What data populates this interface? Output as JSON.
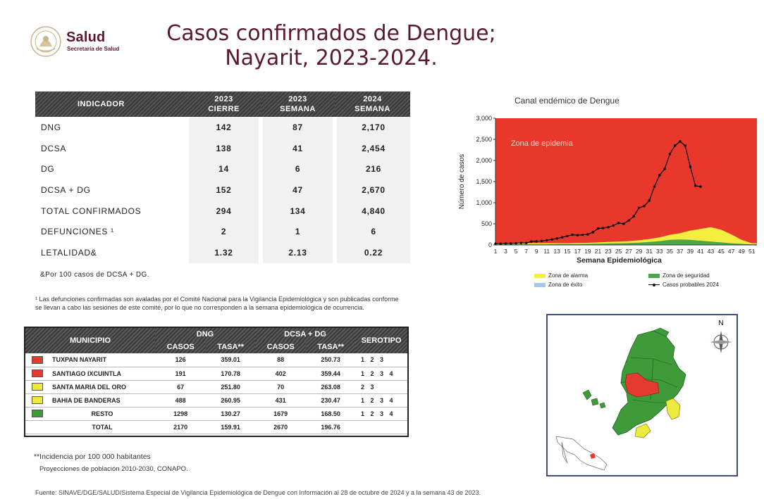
{
  "header": {
    "brand": "Salud",
    "subtitle": "Secretaría de Salud",
    "title_line1": "Casos confirmados de Dengue;",
    "title_line2": "Nayarit, 2023-2024."
  },
  "indicators": {
    "headers": {
      "indicador": "INDICADOR",
      "col1_a": "2023",
      "col1_b": "CIERRE",
      "col2_a": "2023",
      "col2_b": "SEMANA",
      "col3_a": "2024",
      "col3_b": "SEMANA"
    },
    "rows": [
      {
        "label": "DNG",
        "v1": "142",
        "v2": "87",
        "v3": "2,170"
      },
      {
        "label": "DCSA",
        "v1": "138",
        "v2": "41",
        "v3": "2,454"
      },
      {
        "label": "DG",
        "v1": "14",
        "v2": "6",
        "v3": "216"
      },
      {
        "label": "DCSA + DG",
        "v1": "152",
        "v2": "47",
        "v3": "2,670"
      },
      {
        "label": "TOTAL CONFIRMADOS",
        "v1": "294",
        "v2": "134",
        "v3": "4,840"
      },
      {
        "label": "DEFUNCIONES ¹",
        "v1": "2",
        "v2": "1",
        "v3": "6"
      },
      {
        "label": "LETALIDAD&",
        "v1": "1.32",
        "v2": "2.13",
        "v3": "0.22"
      }
    ],
    "note_por": "&Por 100 casos de DCSA + DG.",
    "note_defs": "¹ Las defunciones confirmadas son avaladas por el Comité Nacional para la Vigilancia Epidemiológica y son publicadas conforme se llevan a cabo las sesiones de este comité, por lo que no corresponden a la semana epidemiológica de ocurrencia."
  },
  "municipios": {
    "headers": {
      "municipio": "MUNICIPIO",
      "dng": "DNG",
      "dcsa": "DCSA + DG",
      "serotipo": "SEROTIPO",
      "casos": "CASOS",
      "tasa": "TASA**"
    },
    "rows": [
      {
        "color": "#e53a2f",
        "name": "TUXPAN NAYARIT",
        "casos1": "126",
        "tasa1": "359.01",
        "casos2": "88",
        "tasa2": "250.73",
        "sero": "1 2 3"
      },
      {
        "color": "#e53a2f",
        "name": "SANTIAGO IXCUINTLA",
        "casos1": "191",
        "tasa1": "170.78",
        "casos2": "402",
        "tasa2": "359.44",
        "sero": "1 2 3 4"
      },
      {
        "color": "#ecea3a",
        "name": "SANTA MARIA DEL ORO",
        "casos1": "67",
        "tasa1": "251.80",
        "casos2": "70",
        "tasa2": "263.08",
        "sero": "2 3"
      },
      {
        "color": "#ecea3a",
        "name": "BAHIA DE BANDERAS",
        "casos1": "488",
        "tasa1": "260.95",
        "casos2": "431",
        "tasa2": "230.47",
        "sero": "1 2 3 4"
      },
      {
        "color": "#3f9a3a",
        "name": "RESTO",
        "casos1": "1298",
        "tasa1": "130.27",
        "casos2": "1679",
        "tasa2": "168.50",
        "sero": "1 2 3 4"
      }
    ],
    "total": {
      "name": "TOTAL",
      "casos1": "2170",
      "tasa1": "159.91",
      "casos2": "2670",
      "tasa2": "196.76"
    }
  },
  "notes": {
    "incidencia": "**Incidencia por 100 000 habitantes",
    "proyecciones": "Proyecciones de población 2010-2030,  CONAPO.",
    "fuente": "Fuente: SINAVE/DGE/SALUD/Sistema Especial de Vigilancia Epidemiológica de Dengue con Información al 28 de octubre de 2024 y a la semana 43 de 2023."
  },
  "chart_data": {
    "type": "area",
    "title": "Canal endémico de Dengue",
    "xlabel": "Semana Epidemiológica",
    "ylabel": "Número de casos",
    "ylim": [
      0,
      3000
    ],
    "yticks": [
      "0",
      "500",
      "1,000",
      "1,500",
      "2,000",
      "2,500",
      "3,000"
    ],
    "xticks": [
      1,
      3,
      5,
      7,
      9,
      11,
      13,
      15,
      17,
      19,
      21,
      23,
      25,
      27,
      29,
      31,
      33,
      35,
      37,
      39,
      41,
      43,
      45,
      47,
      49,
      51
    ],
    "epidemic_label": "Zona de epidemia",
    "zones": {
      "epidemia": {
        "name": "Zona de epidemia",
        "color": "#e8382b"
      },
      "alarma": {
        "name": "Zona de alarma",
        "color": "#f3ee3f"
      },
      "seguridad": {
        "name": "Zona de seguridad",
        "color": "#4aa647"
      },
      "exito": {
        "name": "Zona de éxito",
        "color": "#a8c8e8"
      }
    },
    "weeks": [
      1,
      3,
      5,
      7,
      9,
      11,
      13,
      15,
      17,
      19,
      21,
      23,
      25,
      27,
      29,
      31,
      33,
      35,
      37,
      39,
      41,
      43,
      45,
      47,
      49,
      51,
      52
    ],
    "seguridad_upper": [
      15,
      15,
      15,
      15,
      15,
      15,
      20,
      20,
      20,
      25,
      30,
      35,
      40,
      45,
      55,
      70,
      90,
      120,
      130,
      120,
      100,
      80,
      60,
      40,
      25,
      15,
      15
    ],
    "alarma_upper": [
      40,
      40,
      40,
      40,
      40,
      40,
      40,
      40,
      45,
      50,
      60,
      70,
      80,
      90,
      110,
      140,
      180,
      240,
      280,
      340,
      380,
      420,
      360,
      250,
      120,
      40,
      40
    ],
    "series": [
      {
        "name": "Casos probables 2024",
        "x": [
          1,
          2,
          3,
          4,
          5,
          6,
          7,
          8,
          9,
          10,
          11,
          12,
          13,
          14,
          15,
          16,
          17,
          18,
          19,
          20,
          21,
          22,
          23,
          24,
          25,
          26,
          27,
          28,
          29,
          30,
          31,
          32,
          33,
          34,
          35,
          36,
          37,
          38,
          39,
          40,
          41
        ],
        "values": [
          30,
          30,
          35,
          35,
          40,
          45,
          45,
          80,
          85,
          95,
          110,
          130,
          150,
          180,
          210,
          240,
          230,
          240,
          250,
          300,
          390,
          400,
          420,
          460,
          520,
          500,
          580,
          680,
          880,
          920,
          1050,
          1380,
          1650,
          1800,
          2150,
          2350,
          2450,
          2350,
          1850,
          1400,
          1380
        ]
      }
    ]
  },
  "map": {
    "north_label": "N",
    "colors": {
      "red": "#e53a2f",
      "yellow": "#ecea3a",
      "green": "#3f9a3a"
    }
  }
}
